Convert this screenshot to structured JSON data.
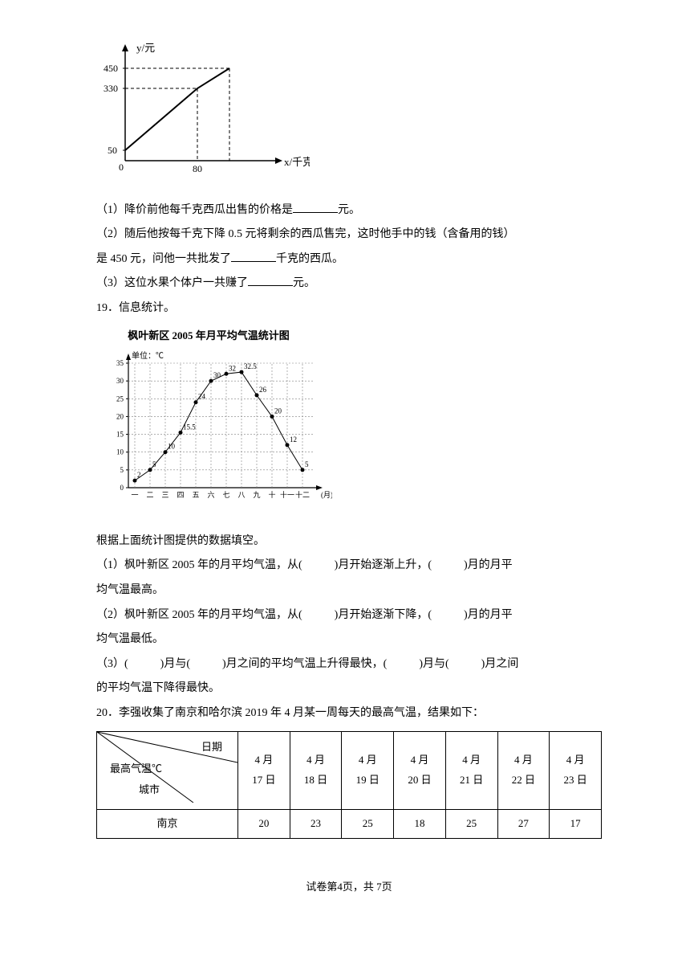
{
  "chart1": {
    "y_axis_label": "y/元",
    "x_axis_label": "x/千克",
    "y_ticks": [
      50,
      330,
      450
    ],
    "x_ticks": [
      80
    ],
    "x_axis_value": 80,
    "line_color": "#000000",
    "dash_color": "#000000",
    "background_color": "#ffffff",
    "axis_color": "#000000",
    "points": [
      {
        "x": 0,
        "y": 50
      },
      {
        "x": 80,
        "y": 330
      },
      {
        "x": 120,
        "y": 450
      }
    ],
    "line_width": 2
  },
  "q18": {
    "sub1_pre": "（1）降价前他每千克西瓜出售的价格是",
    "sub1_post": "元。",
    "sub2_pre": "（2）随后他按每千克下降 0.5 元将剩余的西瓜售完，这时他手中的钱（含备用的钱）",
    "sub2_mid": "是 450 元，问他一共批发了",
    "sub2_post": "千克的西瓜。",
    "sub3_pre": "（3）这位水果个体户一共赚了",
    "sub3_post": "元。"
  },
  "q19": {
    "header": "19．信息统计。",
    "chart2": {
      "title": "枫叶新区 2005 年月平均气温统计图",
      "y_unit": "单位：℃",
      "x_label": "(月)",
      "y_ticks": [
        0,
        5,
        10,
        15,
        20,
        25,
        30,
        35
      ],
      "x_labels": [
        "一",
        "二",
        "三",
        "四",
        "五",
        "六",
        "七",
        "八",
        "九",
        "十",
        "十一",
        "十二"
      ],
      "values": [
        2,
        5,
        10,
        15.5,
        24,
        30,
        32,
        32.5,
        26,
        20,
        12,
        5
      ],
      "value_labels": [
        "2",
        "5",
        "10",
        "15.5",
        "24",
        "30",
        "32",
        "32.5",
        "26",
        "20",
        "12",
        "5"
      ],
      "line_color": "#000000",
      "marker_color": "#000000",
      "grid_color": "#808080",
      "dash_color": "#808080",
      "background_color": "#ffffff",
      "label_fontsize": 9,
      "marker_size": 2.5,
      "line_width": 1
    },
    "caption": "根据上面统计图提供的数据填空。",
    "sub1_a": "（1）枫叶新区 2005 年的月平均气温，从(",
    "sub1_b": ")月开始逐渐上升，(",
    "sub1_c": ")月的月平",
    "sub1_d": "均气温最高。",
    "sub2_a": "（2）枫叶新区 2005 年的月平均气温，从(",
    "sub2_b": ")月开始逐渐下降，(",
    "sub2_c": ")月的月平",
    "sub2_d": "均气温最低。",
    "sub3_a": "（3）(",
    "sub3_b": ")月与(",
    "sub3_c": ")月之间的平均气温上升得最快，(",
    "sub3_d": ")月与(",
    "sub3_e": ")月之间",
    "sub3_f": "的平均气温下降得最快。"
  },
  "q20": {
    "header": "20．李强收集了南京和哈尔滨 2019 年 4 月某一周每天的最高气温，结果如下：",
    "diag_labels": {
      "date": "日期",
      "temp": "最高气温℃",
      "city": "城市"
    },
    "dates": [
      "4 月\n17 日",
      "4 月\n18 日",
      "4 月\n19 日",
      "4 月\n20 日",
      "4 月\n21 日",
      "4 月\n22 日",
      "4 月\n23 日"
    ],
    "nanjing_label": "南京",
    "nanjing_values": [
      20,
      23,
      25,
      18,
      25,
      27,
      17
    ]
  },
  "footer": {
    "text_pre": "试卷第",
    "page_num": "4",
    "text_mid": "页，共 ",
    "total": "7",
    "text_post": "页"
  }
}
